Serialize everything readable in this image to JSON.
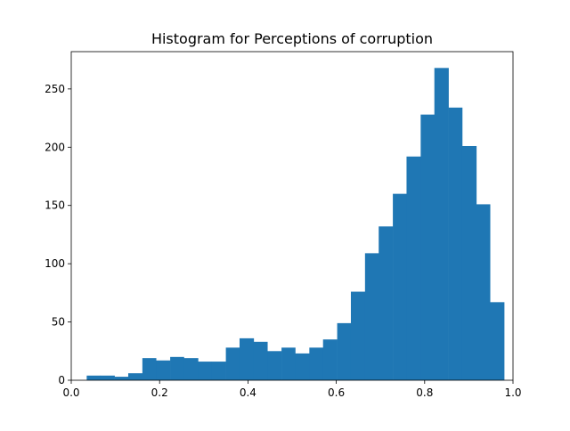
{
  "chart_data": {
    "type": "bar",
    "title": "Histogram for Perceptions of corruption",
    "xlabel": "",
    "ylabel": "",
    "xlim": [
      0.0,
      1.0
    ],
    "ylim": [
      0,
      282
    ],
    "x_ticks": [
      0.0,
      0.2,
      0.4,
      0.6,
      0.8,
      1.0
    ],
    "y_ticks": [
      0,
      50,
      100,
      150,
      200,
      250
    ],
    "bar_color": "#1f77b4",
    "grid": false,
    "bin_edges": [
      0.035,
      0.066,
      0.098,
      0.129,
      0.161,
      0.192,
      0.224,
      0.255,
      0.287,
      0.318,
      0.35,
      0.381,
      0.413,
      0.444,
      0.476,
      0.507,
      0.539,
      0.57,
      0.602,
      0.633,
      0.665,
      0.696,
      0.728,
      0.759,
      0.791,
      0.822,
      0.854,
      0.885,
      0.917,
      0.948,
      0.98
    ],
    "values": [
      4,
      4,
      3,
      6,
      19,
      17,
      20,
      19,
      16,
      16,
      28,
      36,
      33,
      25,
      28,
      23,
      28,
      35,
      49,
      76,
      109,
      132,
      160,
      192,
      228,
      268,
      234,
      201,
      151,
      67
    ]
  }
}
